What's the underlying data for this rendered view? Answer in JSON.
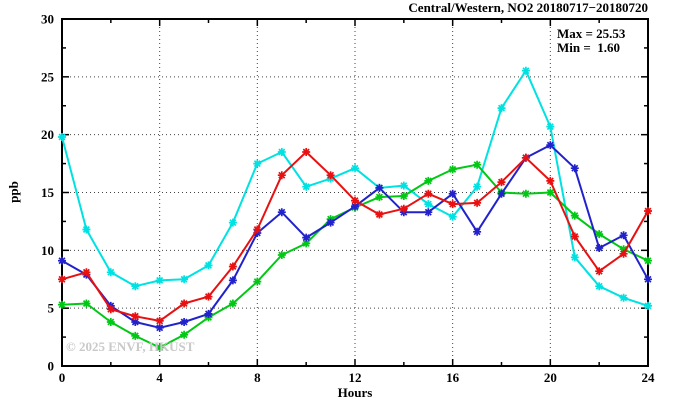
{
  "header": {
    "title": "Central/Western, NO2 20180717−20180720"
  },
  "annotations": {
    "max_label": "Max = 25.53",
    "min_label": "Min =  1.60"
  },
  "watermark": "© 2025 ENVF, HKUST",
  "colors": {
    "background": "#ffffff",
    "frame": "#000000",
    "grid": "#444444",
    "watermark": "#c9c9c9",
    "series_cyan": "#00e2e2",
    "series_green": "#00c814",
    "series_blue": "#2222cc",
    "series_red": "#e81010"
  },
  "chart_data": {
    "type": "line",
    "title": "Central/Western, NO2 20180717−20180720",
    "xlabel": "Hours",
    "ylabel": "ppb",
    "xlim": [
      0,
      24
    ],
    "ylim": [
      0,
      30
    ],
    "grid": true,
    "legend_position": "none",
    "x_major_ticks": [
      0,
      4,
      8,
      12,
      16,
      20,
      24
    ],
    "x_minor_ticks": [
      2,
      6,
      10,
      14,
      18,
      22
    ],
    "y_major_ticks": [
      0,
      5,
      10,
      15,
      20,
      25,
      30
    ],
    "y_minor_ticks": [
      2.5,
      7.5,
      12.5,
      17.5,
      22.5,
      27.5
    ],
    "grid_x": [
      4,
      8,
      12,
      16,
      20
    ],
    "grid_y": [
      5,
      10,
      15,
      20,
      25
    ],
    "marker": "star",
    "x": [
      0,
      1,
      2,
      3,
      4,
      5,
      6,
      7,
      8,
      9,
      10,
      11,
      12,
      13,
      14,
      15,
      16,
      17,
      18,
      19,
      20,
      21,
      22,
      23,
      24
    ],
    "series": [
      {
        "name": "series-cyan",
        "color": "#00e2e2",
        "values": [
          19.8,
          11.8,
          8.1,
          6.9,
          7.4,
          7.5,
          8.7,
          12.4,
          17.5,
          18.5,
          15.5,
          16.2,
          17.1,
          15.4,
          15.6,
          14.0,
          12.9,
          15.5,
          22.3,
          25.53,
          20.7,
          9.4,
          6.9,
          5.9,
          5.2
        ]
      },
      {
        "name": "series-green",
        "color": "#00c814",
        "values": [
          5.3,
          5.4,
          3.8,
          2.6,
          1.6,
          2.7,
          4.2,
          5.4,
          7.3,
          9.6,
          10.6,
          12.7,
          13.7,
          14.6,
          14.7,
          16.0,
          17.0,
          17.4,
          15.0,
          14.9,
          15.0,
          13.0,
          11.4,
          10.1,
          9.1
        ]
      },
      {
        "name": "series-blue",
        "color": "#2222cc",
        "values": [
          9.1,
          7.9,
          5.2,
          3.8,
          3.3,
          3.8,
          4.5,
          7.4,
          11.5,
          13.3,
          11.1,
          12.4,
          13.8,
          15.4,
          13.3,
          13.3,
          14.9,
          11.6,
          14.9,
          18.0,
          19.1,
          17.1,
          10.2,
          11.3,
          7.5
        ]
      },
      {
        "name": "series-red",
        "color": "#e81010",
        "values": [
          7.5,
          8.1,
          4.9,
          4.3,
          3.9,
          5.4,
          6.0,
          8.6,
          11.8,
          16.5,
          18.5,
          16.5,
          14.3,
          13.1,
          13.6,
          14.9,
          14.0,
          14.1,
          15.9,
          18.0,
          16.0,
          11.2,
          8.2,
          9.7,
          13.4
        ]
      }
    ],
    "stats": {
      "max": 25.53,
      "min": 1.6
    }
  }
}
